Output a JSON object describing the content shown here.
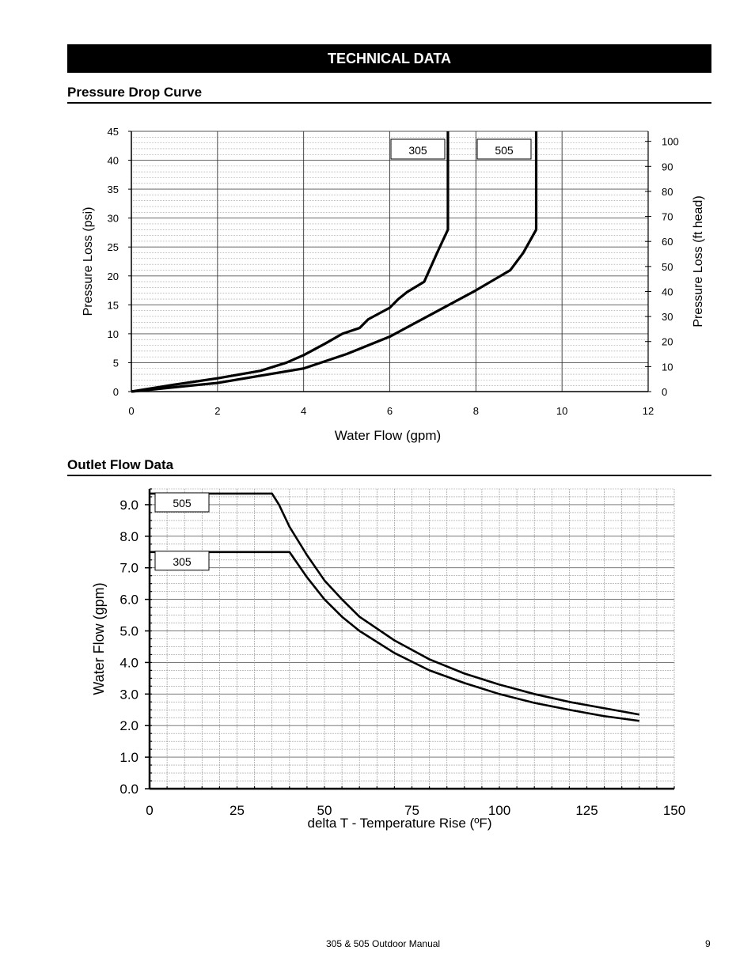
{
  "banner": {
    "title": "TECHNICAL DATA"
  },
  "sections": {
    "pressure": "Pressure Drop Curve",
    "outlet": "Outlet Flow Data"
  },
  "chart_data": [
    {
      "type": "line",
      "title": "",
      "xlabel": "Water Flow (gpm)",
      "ylabel": "Pressure Loss (psi)",
      "y2label": "Pressure Loss (ft head)",
      "xlim": [
        0,
        12
      ],
      "ylim": [
        0,
        45
      ],
      "y2lim": [
        0,
        104
      ],
      "x_ticks": [
        "0",
        "2",
        "4",
        "6",
        "8",
        "10",
        "12"
      ],
      "y_ticks": [
        "0",
        "5",
        "10",
        "15",
        "20",
        "25",
        "30",
        "35",
        "40",
        "45"
      ],
      "y2_ticks": [
        "0",
        "10",
        "20",
        "30",
        "40",
        "50",
        "60",
        "70",
        "80",
        "90",
        "100"
      ],
      "grid": true,
      "series": [
        {
          "name": "305",
          "points": [
            [
              0,
              0
            ],
            [
              1,
              1.2
            ],
            [
              2,
              2.3
            ],
            [
              3,
              3.6
            ],
            [
              3.6,
              5
            ],
            [
              4,
              6.3
            ],
            [
              4.5,
              8.3
            ],
            [
              4.9,
              10
            ],
            [
              5.3,
              11
            ],
            [
              5.5,
              12.5
            ],
            [
              6,
              14.5
            ],
            [
              6.2,
              16
            ],
            [
              6.4,
              17.2
            ],
            [
              6.8,
              19
            ],
            [
              7.1,
              24
            ],
            [
              7.35,
              28
            ],
            [
              7.35,
              45
            ]
          ]
        },
        {
          "name": "505",
          "points": [
            [
              0,
              0
            ],
            [
              2,
              1.5
            ],
            [
              4,
              4
            ],
            [
              5,
              6.5
            ],
            [
              6,
              9.5
            ],
            [
              7,
              13.5
            ],
            [
              8,
              17.5
            ],
            [
              8.8,
              21
            ],
            [
              9.1,
              24
            ],
            [
              9.4,
              28
            ],
            [
              9.4,
              45
            ]
          ]
        }
      ]
    },
    {
      "type": "line",
      "title": "",
      "xlabel": "delta T - Temperature Rise (ºF)",
      "ylabel": "Water Flow (gpm)",
      "xlim": [
        0,
        150
      ],
      "ylim": [
        0,
        9.5
      ],
      "x_ticks": [
        "0",
        "25",
        "50",
        "75",
        "100",
        "125",
        "150"
      ],
      "y_ticks": [
        "0.0",
        "1.0",
        "2.0",
        "3.0",
        "4.0",
        "5.0",
        "6.0",
        "7.0",
        "8.0",
        "9.0"
      ],
      "grid": true,
      "series": [
        {
          "name": "505",
          "points": [
            [
              0,
              9.35
            ],
            [
              35,
              9.35
            ],
            [
              37,
              9
            ],
            [
              40,
              8.3
            ],
            [
              45,
              7.4
            ],
            [
              50,
              6.6
            ],
            [
              55,
              6.0
            ],
            [
              60,
              5.45
            ],
            [
              70,
              4.7
            ],
            [
              80,
              4.1
            ],
            [
              90,
              3.65
            ],
            [
              100,
              3.3
            ],
            [
              110,
              3.0
            ],
            [
              120,
              2.75
            ],
            [
              130,
              2.55
            ],
            [
              140,
              2.35
            ]
          ]
        },
        {
          "name": "305",
          "points": [
            [
              0,
              7.5
            ],
            [
              40,
              7.5
            ],
            [
              45,
              6.7
            ],
            [
              50,
              6.0
            ],
            [
              55,
              5.45
            ],
            [
              60,
              5.0
            ],
            [
              70,
              4.3
            ],
            [
              80,
              3.75
            ],
            [
              90,
              3.35
            ],
            [
              100,
              3.0
            ],
            [
              110,
              2.72
            ],
            [
              120,
              2.5
            ],
            [
              130,
              2.3
            ],
            [
              140,
              2.15
            ]
          ]
        }
      ]
    }
  ],
  "footer": {
    "manual": "305 & 505 Outdoor Manual",
    "page": "9"
  }
}
